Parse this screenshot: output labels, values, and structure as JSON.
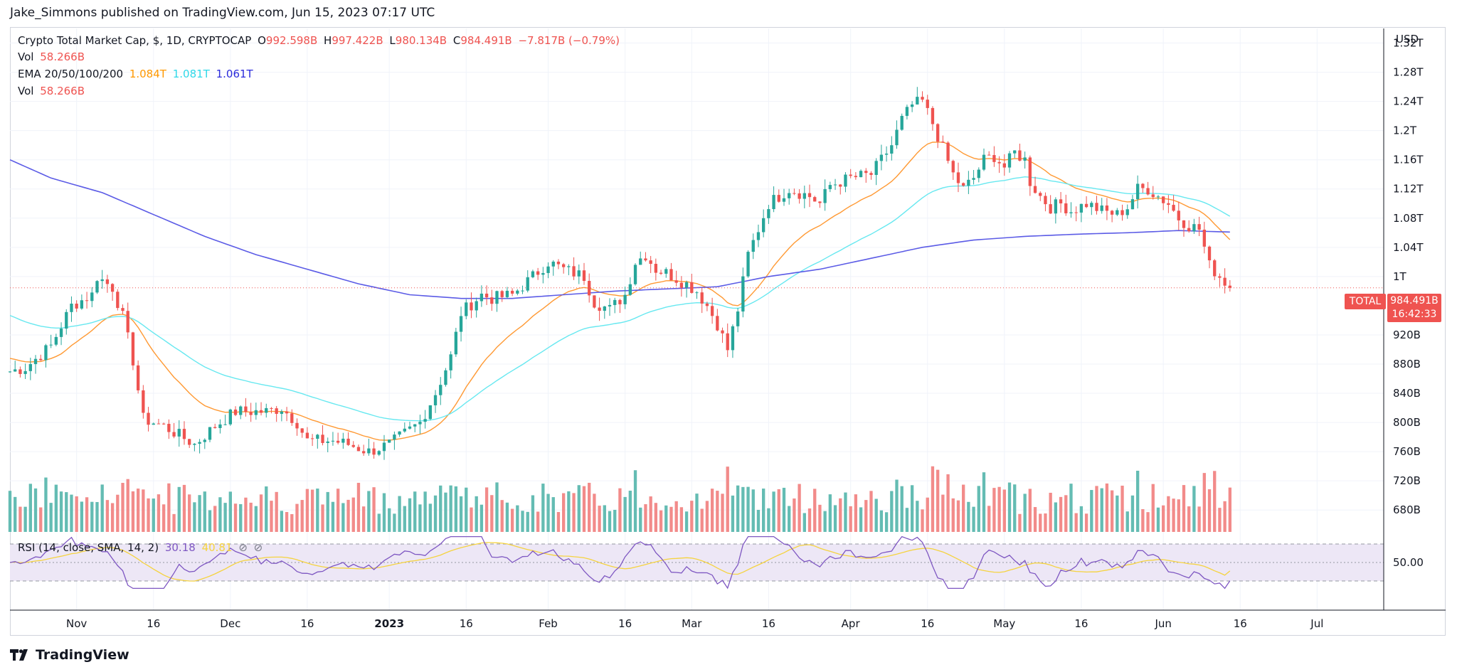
{
  "publisher": "Jake_Simmons published on TradingView.com, Jun 15, 2023 07:17 UTC",
  "legend": {
    "symbol": "Crypto Total Market Cap, $, 1D, CRYPTOCAP",
    "o_label": "O",
    "o_value": "992.598B",
    "h_label": "H",
    "h_value": "997.422B",
    "l_label": "L",
    "l_value": "980.134B",
    "c_label": "C",
    "c_value": "984.491B",
    "change": "−7.817B (−0.79%)",
    "vol_label": "Vol",
    "vol_value": "58.266B",
    "ema_label": "EMA 20/50/100/200",
    "ema20": "1.084T",
    "ema50": "1.081T",
    "ema100": "1.061T",
    "vol2_label": "Vol",
    "vol2_value": "58.266B"
  },
  "rsi_legend": {
    "label": "RSI (14, close, SMA, 14, 2)",
    "value": "30.18",
    "sma": "40.81"
  },
  "price_tags": {
    "symbol": "TOTAL",
    "price": "984.491B",
    "countdown": "16:42:33"
  },
  "axis_currency": "USD",
  "brand": "TradingView",
  "colors": {
    "up": "#26a69a",
    "down": "#ef5350",
    "up_vol": "#64bcb3",
    "down_vol": "#f28b8a",
    "ema_orange": "#ff9933",
    "ema_cyan": "#67e8f0",
    "ema_blue": "#5b5be6",
    "rsi_line": "#7e57c2",
    "rsi_sma": "#f5d33f",
    "rsi_band": "#ede7f6",
    "grid": "#f0f3fa"
  },
  "chart_data": {
    "type": "candlestick",
    "title": "Crypto Total Market Cap, $, 1D, CRYPTOCAP",
    "y_unit": "USD",
    "y_ticks": [
      "1.32T",
      "1.28T",
      "1.24T",
      "1.2T",
      "1.16T",
      "1.12T",
      "1.08T",
      "1.04T",
      "1T",
      "920B",
      "880B",
      "840B",
      "800B",
      "760B",
      "720B",
      "680B"
    ],
    "y_tick_values": [
      1320,
      1280,
      1240,
      1200,
      1160,
      1120,
      1080,
      1040,
      1000,
      920,
      880,
      840,
      800,
      760,
      720,
      680
    ],
    "ylim": [
      650,
      1340
    ],
    "x_ticks": [
      "Nov",
      "16",
      "Dec",
      "16",
      "2023",
      "16",
      "Feb",
      "16",
      "Mar",
      "16",
      "Apr",
      "16",
      "May",
      "16",
      "Jun",
      "16",
      "Jul"
    ],
    "x_tick_days": [
      15,
      30,
      45,
      60,
      76,
      91,
      107,
      122,
      135,
      150,
      166,
      181,
      196,
      211,
      227,
      242,
      257
    ],
    "x_range_days": [
      2,
      270
    ],
    "waypoints": [
      [
        2,
        870
      ],
      [
        5,
        875
      ],
      [
        10,
        905
      ],
      [
        14,
        960
      ],
      [
        18,
        975
      ],
      [
        19,
        1000
      ],
      [
        22,
        985
      ],
      [
        24,
        945
      ],
      [
        26,
        885
      ],
      [
        28,
        805
      ],
      [
        32,
        795
      ],
      [
        38,
        770
      ],
      [
        42,
        795
      ],
      [
        46,
        815
      ],
      [
        52,
        815
      ],
      [
        55,
        820
      ],
      [
        58,
        800
      ],
      [
        60,
        775
      ],
      [
        65,
        775
      ],
      [
        68,
        770
      ],
      [
        72,
        760
      ],
      [
        76,
        770
      ],
      [
        82,
        800
      ],
      [
        85,
        840
      ],
      [
        88,
        890
      ],
      [
        90,
        950
      ],
      [
        94,
        975
      ],
      [
        96,
        970
      ],
      [
        100,
        975
      ],
      [
        104,
        1000
      ],
      [
        107,
        1020
      ],
      [
        110,
        1010
      ],
      [
        112,
        1005
      ],
      [
        114,
        1000
      ],
      [
        116,
        965
      ],
      [
        119,
        955
      ],
      [
        122,
        975
      ],
      [
        124,
        1020
      ],
      [
        126,
        1030
      ],
      [
        128,
        1010
      ],
      [
        130,
        1005
      ],
      [
        134,
        990
      ],
      [
        136,
        980
      ],
      [
        138,
        960
      ],
      [
        140,
        935
      ],
      [
        142,
        900
      ],
      [
        144,
        955
      ],
      [
        146,
        1030
      ],
      [
        150,
        1100
      ],
      [
        154,
        1120
      ],
      [
        158,
        1110
      ],
      [
        160,
        1100
      ],
      [
        162,
        1125
      ],
      [
        166,
        1135
      ],
      [
        170,
        1140
      ],
      [
        174,
        1180
      ],
      [
        176,
        1215
      ],
      [
        178,
        1235
      ],
      [
        180,
        1240
      ],
      [
        182,
        1210
      ],
      [
        184,
        1175
      ],
      [
        186,
        1140
      ],
      [
        188,
        1120
      ],
      [
        190,
        1135
      ],
      [
        192,
        1160
      ],
      [
        194,
        1165
      ],
      [
        196,
        1150
      ],
      [
        198,
        1170
      ],
      [
        200,
        1160
      ],
      [
        201,
        1130
      ],
      [
        203,
        1110
      ],
      [
        205,
        1095
      ],
      [
        207,
        1100
      ],
      [
        209,
        1090
      ],
      [
        212,
        1100
      ],
      [
        215,
        1090
      ],
      [
        218,
        1085
      ],
      [
        220,
        1095
      ],
      [
        222,
        1120
      ],
      [
        224,
        1120
      ],
      [
        226,
        1110
      ],
      [
        228,
        1100
      ],
      [
        230,
        1080
      ],
      [
        232,
        1070
      ],
      [
        234,
        1065
      ],
      [
        236,
        1015
      ],
      [
        238,
        1000
      ],
      [
        240,
        985
      ]
    ],
    "ema_200_waypoints": [
      [
        2,
        1160
      ],
      [
        10,
        1135
      ],
      [
        20,
        1115
      ],
      [
        30,
        1085
      ],
      [
        40,
        1055
      ],
      [
        50,
        1030
      ],
      [
        60,
        1010
      ],
      [
        70,
        990
      ],
      [
        80,
        975
      ],
      [
        90,
        970
      ],
      [
        100,
        970
      ],
      [
        110,
        975
      ],
      [
        120,
        980
      ],
      [
        130,
        983
      ],
      [
        140,
        986
      ],
      [
        150,
        1000
      ],
      [
        160,
        1010
      ],
      [
        170,
        1025
      ],
      [
        180,
        1040
      ],
      [
        190,
        1050
      ],
      [
        200,
        1055
      ],
      [
        210,
        1058
      ],
      [
        220,
        1060
      ],
      [
        230,
        1063
      ],
      [
        240,
        1061
      ]
    ],
    "ema_20_last": 1084,
    "ema_50_last": 1081,
    "ema_100_last": 1061,
    "last_close": 984.491,
    "rsi": {
      "ticks": [
        "50.00"
      ],
      "band": [
        30,
        70
      ],
      "last": 30.18,
      "sma_last": 40.81
    }
  }
}
